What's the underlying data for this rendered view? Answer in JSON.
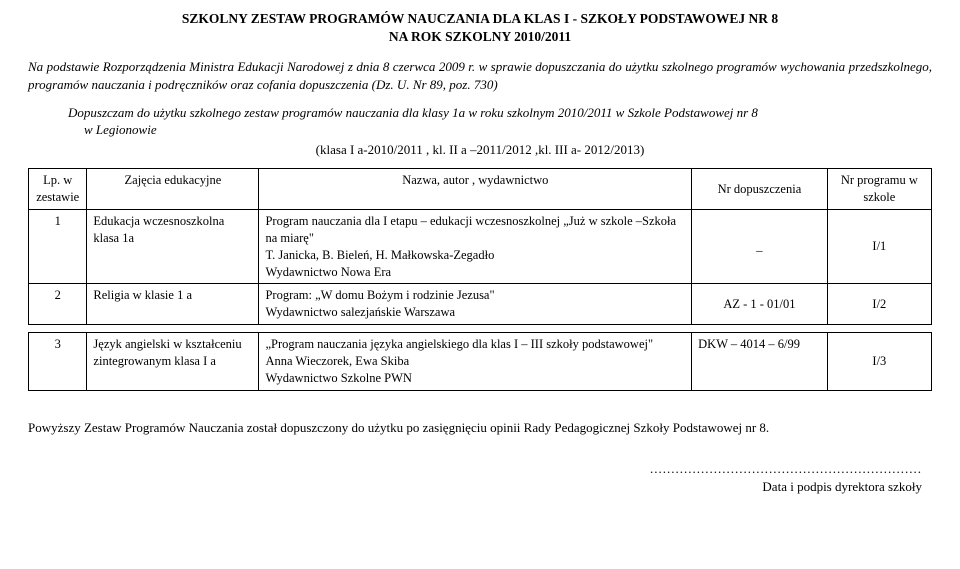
{
  "title_line1": "SZKOLNY ZESTAW PROGRAMÓW NAUCZANIA  DLA KLAS I - SZKOŁY PODSTAWOWEJ NR 8",
  "title_line2": "NA ROK SZKOLNY 2010/2011",
  "intro": "Na podstawie Rozporządzenia Ministra Edukacji Narodowej z dnia 8 czerwca 2009 r. w sprawie dopuszczania do użytku szkolnego programów wychowania przedszkolnego, programów nauczania i podręczników oraz cofania dopuszczenia (Dz. U. Nr 89, poz. 730)",
  "decision_line1": "Dopuszczam do użytku szkolnego zestaw programów nauczania dla klasy 1a w roku szkolnym 2010/2011 w Szkole Podstawowej nr 8",
  "decision_line2": "w Legionowie",
  "klasa_line": "(klasa I a-2010/2011 , kl. II a –2011/2012 ,kl. III a- 2012/2013)",
  "headers": {
    "lp": "Lp. w zestawie",
    "subj": "Zajęcia edukacyjne",
    "nazwa": "Nazwa, autor , wydawnictwo",
    "nr1": "Nr dopuszczenia",
    "nr2": "Nr programu w szkole"
  },
  "rows": [
    {
      "lp": "1",
      "subj": "Edukacja wczesnoszkolna  klasa 1a",
      "nazwa": "Program nauczania dla I etapu – edukacji wczesnoszkolnej „Już w szkole –Szkoła na miarę\"\nT. Janicka, B. Bieleń, H. Małkowska-Zegadło\nWydawnictwo Nowa Era",
      "nr1": "_",
      "nr2": "I/1"
    },
    {
      "lp": "2",
      "subj": "Religia w klasie 1 a",
      "nazwa": "Program: „W domu Bożym i rodzinie Jezusa\"\nWydawnictwo salezjańskie Warszawa",
      "nr1": "AZ - 1 - 01/01",
      "nr2": "I/2"
    },
    {
      "lp": "3",
      "subj": "Język angielski w kształceniu zintegrowanym klasa I a",
      "nazwa": "„Program nauczania języka angielskiego dla klas I – III szkoły podstawowej\"\nAnna Wieczorek, Ewa Skiba\nWydawnictwo Szkolne PWN",
      "nr1": "DKW – 4014 – 6/99",
      "nr2": "I/3"
    }
  ],
  "footer_note": "Powyższy Zestaw Programów Nauczania został dopuszczony do użytku po zasięgnięciu opinii Rady Pedagogicznej Szkoły Podstawowej nr 8.",
  "sign_dots": "................................................................",
  "sign_label": "Data i podpis dyrektora szkoły"
}
